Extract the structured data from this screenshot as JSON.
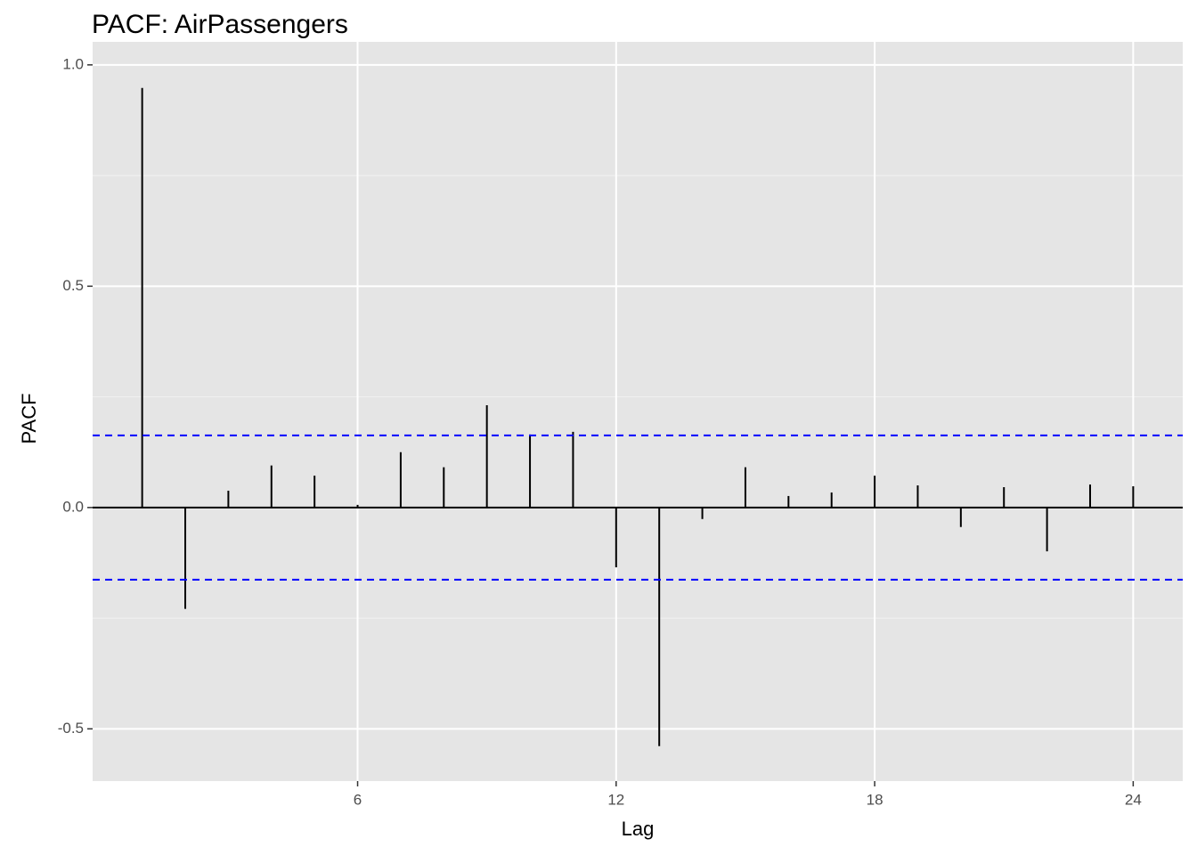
{
  "chart_data": {
    "type": "lollipop-acf",
    "title": "PACF: AirPassengers",
    "x_label": "Lag",
    "y_label": "PACF",
    "x": [
      1,
      2,
      3,
      4,
      5,
      6,
      7,
      8,
      9,
      10,
      11,
      12,
      13,
      14,
      15,
      16,
      17,
      18,
      19,
      20,
      21,
      22,
      23,
      24
    ],
    "values": [
      0.948,
      -0.229,
      0.038,
      0.095,
      0.072,
      0.006,
      0.125,
      0.091,
      0.231,
      0.165,
      0.171,
      -0.135,
      -0.539,
      -0.026,
      0.091,
      0.026,
      0.034,
      0.072,
      0.05,
      -0.044,
      0.046,
      -0.099,
      0.052,
      0.048
    ],
    "color": "#000000",
    "confidence_bounds": [
      0.163,
      -0.163
    ],
    "confidence_color": "#0000ff",
    "xlim": [
      -0.15,
      25.15
    ],
    "ylim": [
      -0.618,
      1.052
    ],
    "xticks": [
      6,
      12,
      18,
      24
    ],
    "yticks": [
      -0.5,
      {
        "value": 0,
        "label": "0.0"
      },
      0.5,
      {
        "value": 1,
        "label": "1.0"
      }
    ],
    "grid": true
  }
}
